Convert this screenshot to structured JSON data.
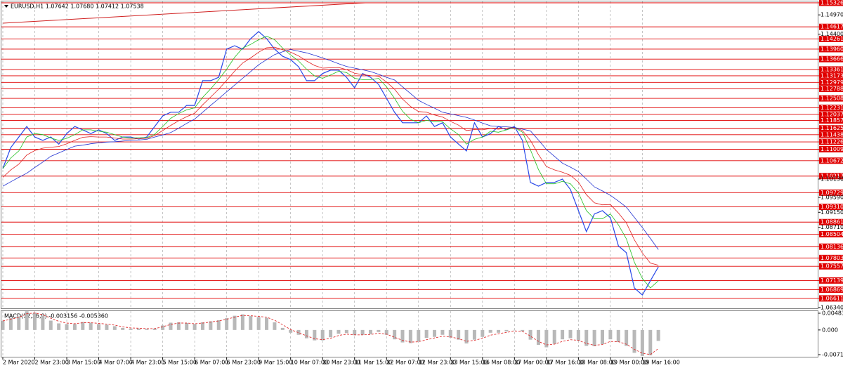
{
  "chart_data": [
    {
      "type": "line",
      "title": "EURUSD,H1  1.07642 1.07680 1.07412 1.07538",
      "categories": [
        "2 Mar 2020",
        null,
        null,
        null,
        "2 Mar 23:00",
        null,
        null,
        null,
        "3 Mar 15:00",
        null,
        null,
        null,
        "4 Mar 07:00",
        null,
        null,
        null,
        "4 Mar 23:00",
        null,
        null,
        null,
        "5 Mar 15:00",
        null,
        null,
        null,
        "6 Mar 07:00",
        null,
        null,
        null,
        "6 Mar 23:00",
        null,
        null,
        null,
        "9 Mar 15:00",
        null,
        null,
        null,
        "10 Mar 07:00",
        null,
        null,
        null,
        "10 Mar 23:00",
        null,
        null,
        null,
        "11 Mar 15:00",
        null,
        null,
        null,
        "12 Mar 07:00",
        null,
        null,
        null,
        "12 Mar 23:00",
        null,
        null,
        null,
        "13 Mar 15:00",
        null,
        null,
        null,
        "16 Mar 08:00",
        null,
        null,
        null,
        "17 Mar 00:00",
        null,
        null,
        null,
        "17 Mar 16:00",
        null,
        null,
        null,
        "18 Mar 08:00",
        null,
        null,
        null,
        "19 Mar 00:00",
        null,
        null,
        null,
        "19 Mar 16:00",
        null,
        null
      ],
      "series": [
        {
          "color": "#2848e8",
          "width": 1.2,
          "values": [
            1.1044,
            1.1106,
            1.1137,
            1.1168,
            1.1137,
            1.1127,
            1.1137,
            1.1116,
            1.1147,
            1.1168,
            1.1158,
            1.1147,
            1.1158,
            1.1147,
            1.1127,
            1.1137,
            1.1137,
            1.1131,
            1.1137,
            1.1168,
            1.1199,
            1.121,
            1.121,
            1.123,
            1.123,
            1.1303,
            1.1303,
            1.1313,
            1.1396,
            1.1406,
            1.1396,
            1.1427,
            1.1448,
            1.1427,
            1.1396,
            1.1375,
            1.1365,
            1.1344,
            1.1303,
            1.1303,
            1.1324,
            1.1334,
            1.1334,
            1.1313,
            1.1282,
            1.1324,
            1.1313,
            1.1292,
            1.1251,
            1.121,
            1.1179,
            1.1179,
            1.1179,
            1.1199,
            1.1168,
            1.1179,
            1.1137,
            1.1116,
            1.1096,
            1.1179,
            1.1137,
            1.1147,
            1.1168,
            1.1158,
            1.1168,
            1.1127,
            1.1003,
            1.0992,
            1.1003,
            1.1003,
            1.1013,
            1.0982,
            1.092,
            1.0858,
            1.091,
            1.092,
            1.0899,
            1.0816,
            1.0796,
            1.0692,
            1.0671,
            1.0713,
            1.0754
          ]
        },
        {
          "color": "#20c020",
          "width": 0.8,
          "values": [
            1.1044,
            1.1075,
            1.1096,
            1.1137,
            1.1147,
            1.1144,
            1.1134,
            1.1127,
            1.1133,
            1.1144,
            1.1158,
            1.1158,
            1.1154,
            1.1151,
            1.1144,
            1.1137,
            1.1134,
            1.1135,
            1.1135,
            1.1145,
            1.1168,
            1.1192,
            1.1206,
            1.1217,
            1.1223,
            1.1254,
            1.1279,
            1.1306,
            1.1337,
            1.1372,
            1.1399,
            1.141,
            1.1424,
            1.1434,
            1.1424,
            1.1399,
            1.1379,
            1.1361,
            1.1337,
            1.1317,
            1.131,
            1.132,
            1.1331,
            1.1327,
            1.131,
            1.1306,
            1.1306,
            1.131,
            1.1285,
            1.1251,
            1.1213,
            1.1189,
            1.1179,
            1.1186,
            1.1182,
            1.1182,
            1.1161,
            1.1144,
            1.1116,
            1.113,
            1.1137,
            1.1154,
            1.1151,
            1.1158,
            1.1165,
            1.1151,
            1.1099,
            1.1041,
            1.0999,
            1.0999,
            1.1006,
            1.0999,
            1.0972,
            1.092,
            1.0896,
            1.0896,
            1.091,
            1.0878,
            1.0837,
            1.0768,
            1.072,
            1.0692,
            1.0713
          ]
        },
        {
          "color": "#e02020",
          "width": 0.8,
          "values": [
            1.1018,
            1.104,
            1.1057,
            1.1084,
            1.1097,
            1.1104,
            1.1107,
            1.1109,
            1.1117,
            1.1127,
            1.1136,
            1.1138,
            1.1137,
            1.1137,
            1.1134,
            1.1131,
            1.1131,
            1.1132,
            1.1133,
            1.1141,
            1.1156,
            1.1171,
            1.1185,
            1.1197,
            1.1207,
            1.1232,
            1.1255,
            1.1278,
            1.1304,
            1.1331,
            1.1355,
            1.137,
            1.1387,
            1.14,
            1.1402,
            1.1394,
            1.1387,
            1.1376,
            1.1361,
            1.1348,
            1.134,
            1.1341,
            1.1342,
            1.1336,
            1.1325,
            1.1321,
            1.1318,
            1.1316,
            1.1299,
            1.1278,
            1.1249,
            1.1227,
            1.1212,
            1.121,
            1.1202,
            1.1196,
            1.1183,
            1.1172,
            1.1156,
            1.1159,
            1.1158,
            1.1162,
            1.116,
            1.1163,
            1.1165,
            1.1156,
            1.1127,
            1.1085,
            1.105,
            1.104,
            1.1033,
            1.1024,
            1.1004,
            1.0967,
            1.0943,
            1.0937,
            1.0938,
            1.0913,
            1.0884,
            1.0834,
            1.0795,
            1.0765,
            1.0759
          ]
        },
        {
          "color": "#2030d0",
          "width": 0.8,
          "values": [
            1.0992,
            1.1005,
            1.1018,
            1.103,
            1.1047,
            1.1063,
            1.108,
            1.109,
            1.11,
            1.111,
            1.1113,
            1.1117,
            1.112,
            1.1122,
            1.1123,
            1.1125,
            1.1127,
            1.1128,
            1.113,
            1.1137,
            1.1143,
            1.115,
            1.1163,
            1.1177,
            1.119,
            1.121,
            1.123,
            1.125,
            1.127,
            1.129,
            1.131,
            1.133,
            1.135,
            1.1365,
            1.138,
            1.1388,
            1.1395,
            1.139,
            1.1385,
            1.1378,
            1.137,
            1.1362,
            1.1353,
            1.1345,
            1.134,
            1.1335,
            1.133,
            1.1322,
            1.1313,
            1.1305,
            1.1285,
            1.1265,
            1.1245,
            1.1233,
            1.1222,
            1.121,
            1.1205,
            1.12,
            1.1195,
            1.1187,
            1.1178,
            1.117,
            1.1168,
            1.1167,
            1.1165,
            1.116,
            1.1155,
            1.1128,
            1.11,
            1.108,
            1.106,
            1.1048,
            1.1035,
            1.1013,
            1.099,
            1.0978,
            1.0965,
            1.0948,
            1.093,
            1.09,
            1.087,
            1.0838,
            1.0805
          ]
        }
      ],
      "ylim": [
        1.0634,
        1.15326
      ],
      "yticks": [
        {
          "value": 1.1497,
          "label": "1.14970"
        },
        {
          "value": 1.144,
          "label": "1.14400"
        },
        {
          "value": 1.1013,
          "label": "1.10130"
        },
        {
          "value": 1.0959,
          "label": "1.09590"
        },
        {
          "value": 1.0915,
          "label": "1.09150"
        },
        {
          "value": 1.0871,
          "label": "1.08710"
        },
        {
          "value": 1.0634,
          "label": "1.06340"
        }
      ],
      "levels": [
        1.15326,
        1.14617,
        1.14261,
        {
          "value": 1.1396,
          "label": "1.13960"
        },
        1.13666,
        1.13361,
        1.13173,
        1.12979,
        1.12788,
        1.12508,
        1.12231,
        1.12037,
        1.11857,
        1.11625,
        1.11438,
        1.11226,
        1.11009,
        1.10672,
        1.10217,
        1.09729,
        {
          "value": 1.0931,
          "label": "1.09310"
        },
        1.08861,
        1.08504,
        1.08136,
        1.07803,
        1.07557,
        1.07139,
        1.06869,
        1.06611
      ],
      "level_color": "#e00000",
      "grid": true
    },
    {
      "type": "bar",
      "title": "MACD(12,26,9) -0.003156 -0.005360",
      "color": "#b8b8b8",
      "values": [
        0.0026,
        0.0035,
        0.0039,
        0.0054,
        0.005,
        0.0041,
        0.0027,
        0.0019,
        0.0017,
        0.0017,
        0.0023,
        0.0021,
        0.0017,
        0.0015,
        0.0011,
        0.0006,
        0.0004,
        0.0004,
        0.0003,
        0.0004,
        0.0013,
        0.0021,
        0.0022,
        0.002,
        0.0017,
        0.0022,
        0.0025,
        0.0028,
        0.0034,
        0.0041,
        0.0045,
        0.004,
        0.0037,
        0.0035,
        0.0022,
        0.0006,
        -0.0008,
        -0.0014,
        -0.0024,
        -0.003,
        -0.003,
        -0.0021,
        -0.0011,
        -0.0009,
        -0.0015,
        -0.0014,
        -0.0012,
        -0.0006,
        -0.0014,
        -0.0027,
        -0.0036,
        -0.0038,
        -0.0033,
        -0.0023,
        -0.002,
        -0.0014,
        -0.0022,
        -0.0028,
        -0.0039,
        -0.0028,
        -0.002,
        -0.0008,
        -0.0008,
        -0.0004,
        0,
        -0.0004,
        -0.0028,
        -0.0043,
        -0.005,
        -0.004,
        -0.0027,
        -0.0024,
        -0.0031,
        -0.0046,
        -0.0047,
        -0.0041,
        -0.0027,
        -0.0035,
        -0.0046,
        -0.0066,
        -0.0075,
        -0.0073,
        -0.003156
      ],
      "signal": {
        "color": "#e03030",
        "values": [
          0.0026,
          0.0031,
          0.0036,
          0.0047,
          0.0049,
          0.0044,
          0.0034,
          0.0025,
          0.002,
          0.0018,
          0.0021,
          0.0021,
          0.0019,
          0.0017,
          0.0014,
          0.0009,
          0.0006,
          0.0005,
          0.0004,
          0.0004,
          0.0009,
          0.0016,
          0.002,
          0.002,
          0.0018,
          0.002,
          0.0023,
          0.0026,
          0.0031,
          0.0037,
          0.0042,
          0.0041,
          0.0039,
          0.0037,
          0.0028,
          0.0015,
          0.0001,
          -0.0008,
          -0.0017,
          -0.0025,
          -0.0028,
          -0.0024,
          -0.0016,
          -0.0012,
          -0.0014,
          -0.0014,
          -0.0013,
          -0.0009,
          -0.0012,
          -0.0021,
          -0.003,
          -0.0035,
          -0.0034,
          -0.0028,
          -0.0023,
          -0.0018,
          -0.002,
          -0.0025,
          -0.0033,
          -0.003,
          -0.0024,
          -0.0015,
          -0.0011,
          -0.0007,
          -0.0003,
          -0.0004,
          -0.0018,
          -0.0033,
          -0.0043,
          -0.0041,
          -0.0033,
          -0.0028,
          -0.003,
          -0.0039,
          -0.0044,
          -0.0042,
          -0.0033,
          -0.0034,
          -0.0041,
          -0.0056,
          -0.0067,
          -0.0071,
          -0.00536
        ]
      },
      "ylim": [
        -0.007125,
        0.004832
      ],
      "yticks": [
        0.004832,
        {
          "value": 0,
          "label": "0.000"
        },
        -0.007125
      ]
    }
  ]
}
